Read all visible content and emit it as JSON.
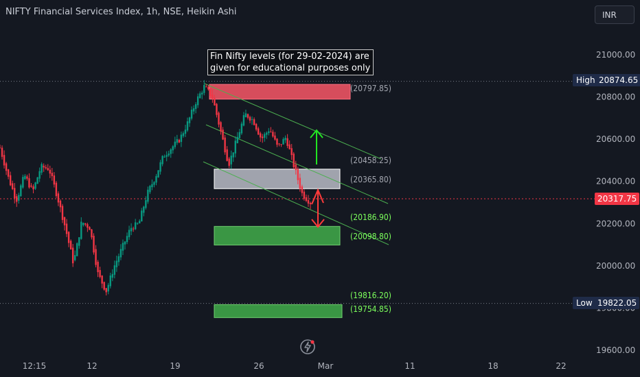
{
  "header": {
    "title": "NIFTY Financial Services Index, 1h, NSE, Heikin Ashi",
    "currency": "INR"
  },
  "annotation": {
    "line1": "Fin Nifty levels (for 29-02-2024) are",
    "line2": "given for educational purposes only"
  },
  "price_tags": {
    "high_label": "High",
    "high_value": "20874.65",
    "low_label": "Low",
    "low_value": "19822.05",
    "last_value": "20317.75"
  },
  "colors": {
    "background": "#141821",
    "up": "#089981",
    "down": "#f23645",
    "resistance_zone": "#e05060",
    "support_zone": "#3c9d47",
    "pivot_zone": "#b8bcc6",
    "channel": "#4caf50",
    "arrow_up": "#22e622",
    "arrow_down": "#ff3b3b",
    "green_label": "#7cff5c",
    "grey_label": "#a3a6af"
  },
  "chart_data": {
    "type": "candlestick",
    "style": "Heikin Ashi",
    "y_axis": {
      "ticks": [
        "21000.00",
        "20800.00",
        "20600.00",
        "20400.00",
        "20200.00",
        "20000.00",
        "19800.00",
        "19600.00"
      ],
      "range": [
        19560,
        21220
      ]
    },
    "x_axis": {
      "tick_labels": [
        "12:15",
        "12",
        "19",
        "26",
        "Mar",
        "11",
        "18",
        "22"
      ]
    },
    "levels": [
      {
        "label": "(20797.85)",
        "value": 20797.85
      },
      {
        "label": "(20458.25)",
        "value": 20458.25
      },
      {
        "label": "(20365.80)",
        "value": 20365.8
      },
      {
        "label": "(20186.90)",
        "value": 20186.9
      },
      {
        "label": "(20098.80)",
        "value": 20098.8
      },
      {
        "label": "(19816.20)",
        "value": 19816.2
      },
      {
        "label": "(19754.85)",
        "value": 19754.85
      }
    ],
    "zones": [
      {
        "name": "resistance",
        "top": 20860,
        "bottom": 20790
      },
      {
        "name": "pivot",
        "top": 20458.25,
        "bottom": 20365.8
      },
      {
        "name": "support-1",
        "top": 20186.9,
        "bottom": 20098.8
      },
      {
        "name": "support-2",
        "top": 19816.2,
        "bottom": 19754.85
      }
    ],
    "high": 20874.65,
    "low": 19822.05,
    "last": 20317.75,
    "price_path": [
      20560,
      20420,
      20310,
      20430,
      20350,
      20470,
      20460,
      20330,
      20180,
      20010,
      20210,
      20180,
      19960,
      19880,
      20000,
      20090,
      20180,
      20200,
      20340,
      20420,
      20520,
      20560,
      20600,
      20680,
      20780,
      20850,
      20800,
      20640,
      20480,
      20600,
      20720,
      20690,
      20600,
      20650,
      20560,
      20610,
      20470,
      20340,
      20300
    ]
  }
}
